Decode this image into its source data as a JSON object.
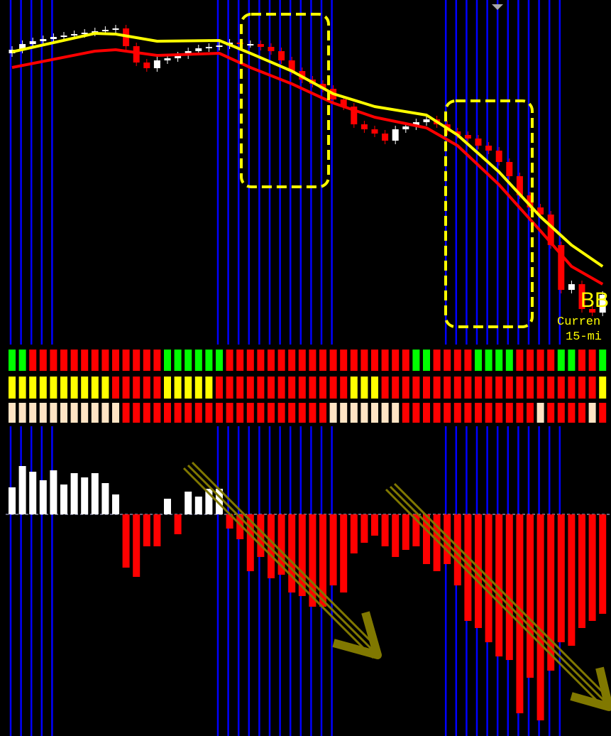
{
  "chart_data": {
    "type": "candlestick",
    "annotations": [
      "BB",
      "Curren",
      "15-mi"
    ],
    "ylim": [
      0,
      485
    ],
    "up_color": "#ffffff",
    "down_color": "#ff0000",
    "open": [
      410,
      415,
      423,
      427,
      430,
      433,
      435,
      437,
      439,
      441,
      443,
      445,
      420,
      397,
      389,
      400,
      403,
      407,
      413,
      417,
      419,
      421,
      425,
      423,
      423,
      419,
      413,
      400,
      385,
      373,
      367,
      360,
      345,
      335,
      310,
      303,
      297,
      287,
      303,
      307,
      313,
      317,
      310,
      300,
      295,
      290,
      280,
      273,
      257,
      237,
      210,
      193,
      183,
      140,
      77,
      85,
      50,
      45
    ],
    "close": [
      415,
      423,
      427,
      430,
      433,
      435,
      437,
      439,
      441,
      443,
      445,
      420,
      397,
      389,
      400,
      403,
      407,
      413,
      417,
      419,
      421,
      425,
      423,
      423,
      419,
      413,
      400,
      385,
      373,
      367,
      360,
      345,
      335,
      310,
      303,
      297,
      287,
      303,
      307,
      313,
      317,
      310,
      300,
      295,
      290,
      280,
      273,
      257,
      237,
      210,
      193,
      183,
      140,
      77,
      85,
      50,
      45,
      70
    ],
    "high": [
      420,
      428,
      432,
      435,
      438,
      440,
      442,
      444,
      446,
      448,
      450,
      450,
      425,
      402,
      405,
      408,
      412,
      418,
      422,
      424,
      426,
      430,
      430,
      428,
      428,
      424,
      418,
      405,
      390,
      378,
      372,
      365,
      350,
      340,
      315,
      308,
      302,
      308,
      312,
      318,
      322,
      322,
      315,
      305,
      300,
      295,
      285,
      278,
      262,
      242,
      215,
      198,
      188,
      145,
      90,
      90,
      55,
      75
    ],
    "low": [
      405,
      410,
      418,
      422,
      425,
      428,
      430,
      432,
      434,
      436,
      438,
      415,
      392,
      384,
      384,
      395,
      398,
      402,
      408,
      412,
      414,
      416,
      418,
      418,
      414,
      408,
      395,
      380,
      368,
      362,
      355,
      340,
      330,
      305,
      298,
      292,
      282,
      282,
      298,
      302,
      308,
      305,
      295,
      290,
      285,
      275,
      268,
      252,
      232,
      205,
      188,
      178,
      135,
      72,
      72,
      45,
      40,
      40
    ],
    "ma": [
      {
        "color": "#ffff00",
        "x": [
          0,
          8,
          10,
          14,
          20,
          23,
          27,
          31,
          35,
          40,
          43,
          47,
          51,
          54,
          57
        ],
        "values": [
          412,
          438,
          437,
          427,
          428,
          410,
          385,
          353,
          335,
          323,
          295,
          243,
          180,
          140,
          110
        ]
      },
      {
        "color": "#ff0000",
        "x": [
          0,
          8,
          10,
          14,
          20,
          23,
          27,
          31,
          35,
          40,
          43,
          47,
          51,
          54,
          57
        ],
        "values": [
          390,
          413,
          415,
          407,
          410,
          390,
          367,
          340,
          320,
          305,
          280,
          225,
          160,
          110,
          85
        ]
      }
    ],
    "signals": [
      {
        "on_color": "#00ff00",
        "off_color": "#ff0000",
        "on": [
          0,
          1,
          15,
          16,
          17,
          18,
          19,
          20,
          39,
          40,
          45,
          46,
          47,
          48,
          53,
          54,
          57
        ]
      },
      {
        "on_color": "#ffff00",
        "off_color": "#ff0000",
        "on": [
          0,
          1,
          2,
          3,
          4,
          5,
          6,
          7,
          8,
          9,
          15,
          16,
          17,
          18,
          19,
          33,
          34,
          35,
          57
        ]
      },
      {
        "on_color": "#ffe4c4",
        "off_color": "#ff0000",
        "on": [
          0,
          1,
          2,
          3,
          4,
          5,
          6,
          7,
          8,
          9,
          10,
          31,
          32,
          33,
          34,
          35,
          36,
          37,
          51,
          56
        ]
      }
    ],
    "histogram": {
      "ylim": [
        -312,
        124
      ],
      "up_color": "#ffffff",
      "down_color": "#ff0000",
      "values": [
        38,
        68,
        60,
        48,
        62,
        42,
        58,
        52,
        58,
        44,
        28,
        -75,
        -88,
        -45,
        -45,
        22,
        -28,
        32,
        25,
        36,
        36,
        -20,
        -35,
        -80,
        -60,
        -90,
        -85,
        -110,
        -115,
        -130,
        -130,
        -100,
        -110,
        -55,
        -40,
        -30,
        -45,
        -60,
        -50,
        -45,
        -70,
        -80,
        -70,
        -100,
        -150,
        -160,
        -180,
        -200,
        -205,
        -280,
        -230,
        -290,
        -220,
        -180,
        -185,
        -160,
        -150,
        -140
      ]
    }
  }
}
